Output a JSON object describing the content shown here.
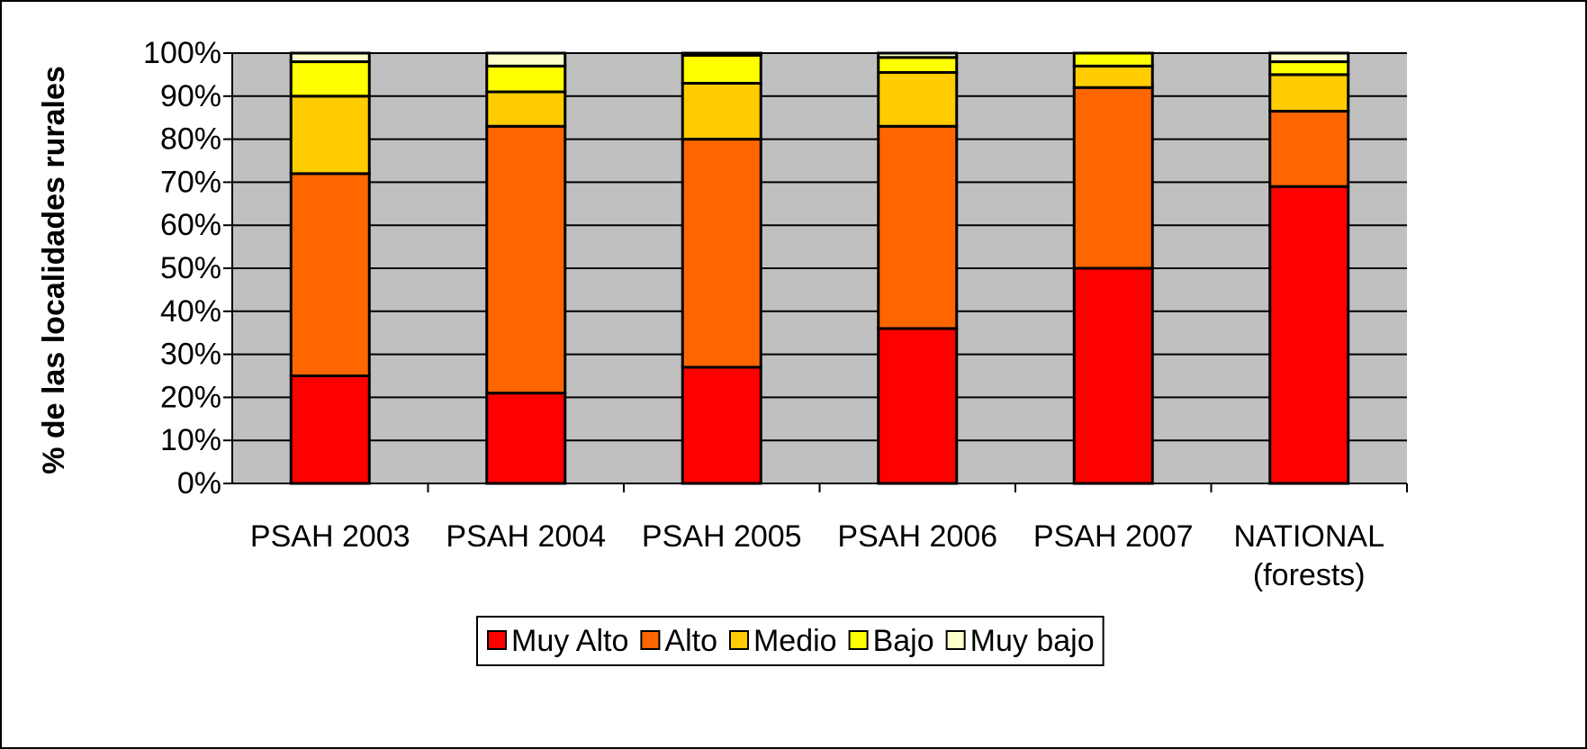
{
  "chart_data": {
    "type": "stacked_bar",
    "y_label": "% de las localidades rurales",
    "categories": [
      "PSAH 2003",
      "PSAH 2004",
      "PSAH 2005",
      "PSAH 2006",
      "PSAH 2007",
      "NATIONAL\n(forests)"
    ],
    "series": [
      {
        "name": "Muy Alto",
        "color": "#ff0000",
        "values": [
          25,
          21,
          27,
          36,
          50,
          69
        ]
      },
      {
        "name": "Alto",
        "color": "#ff6600",
        "values": [
          47,
          62,
          53,
          47,
          42,
          17.5
        ]
      },
      {
        "name": "Medio",
        "color": "#ffcc00",
        "values": [
          18,
          8,
          13,
          12.5,
          5,
          8.5
        ]
      },
      {
        "name": "Bajo",
        "color": "#ffff00",
        "values": [
          8,
          6,
          6.5,
          3.5,
          3,
          3
        ]
      },
      {
        "name": "Muy bajo",
        "color": "#ffffcc",
        "values": [
          2,
          3,
          0.5,
          1,
          0,
          2
        ]
      }
    ],
    "ylim": [
      0,
      100
    ],
    "yticks": [
      {
        "value": 0,
        "label": "0%"
      },
      {
        "value": 10,
        "label": "10%"
      },
      {
        "value": 20,
        "label": "20%"
      },
      {
        "value": 30,
        "label": "30%"
      },
      {
        "value": 40,
        "label": "40%"
      },
      {
        "value": 50,
        "label": "50%"
      },
      {
        "value": 60,
        "label": "60%"
      },
      {
        "value": 70,
        "label": "70%"
      },
      {
        "value": 80,
        "label": "80%"
      },
      {
        "value": 90,
        "label": "90%"
      },
      {
        "value": 100,
        "label": "100%"
      }
    ],
    "grid": true,
    "legend": "bottom",
    "plot_background": "#c0c0c0"
  }
}
